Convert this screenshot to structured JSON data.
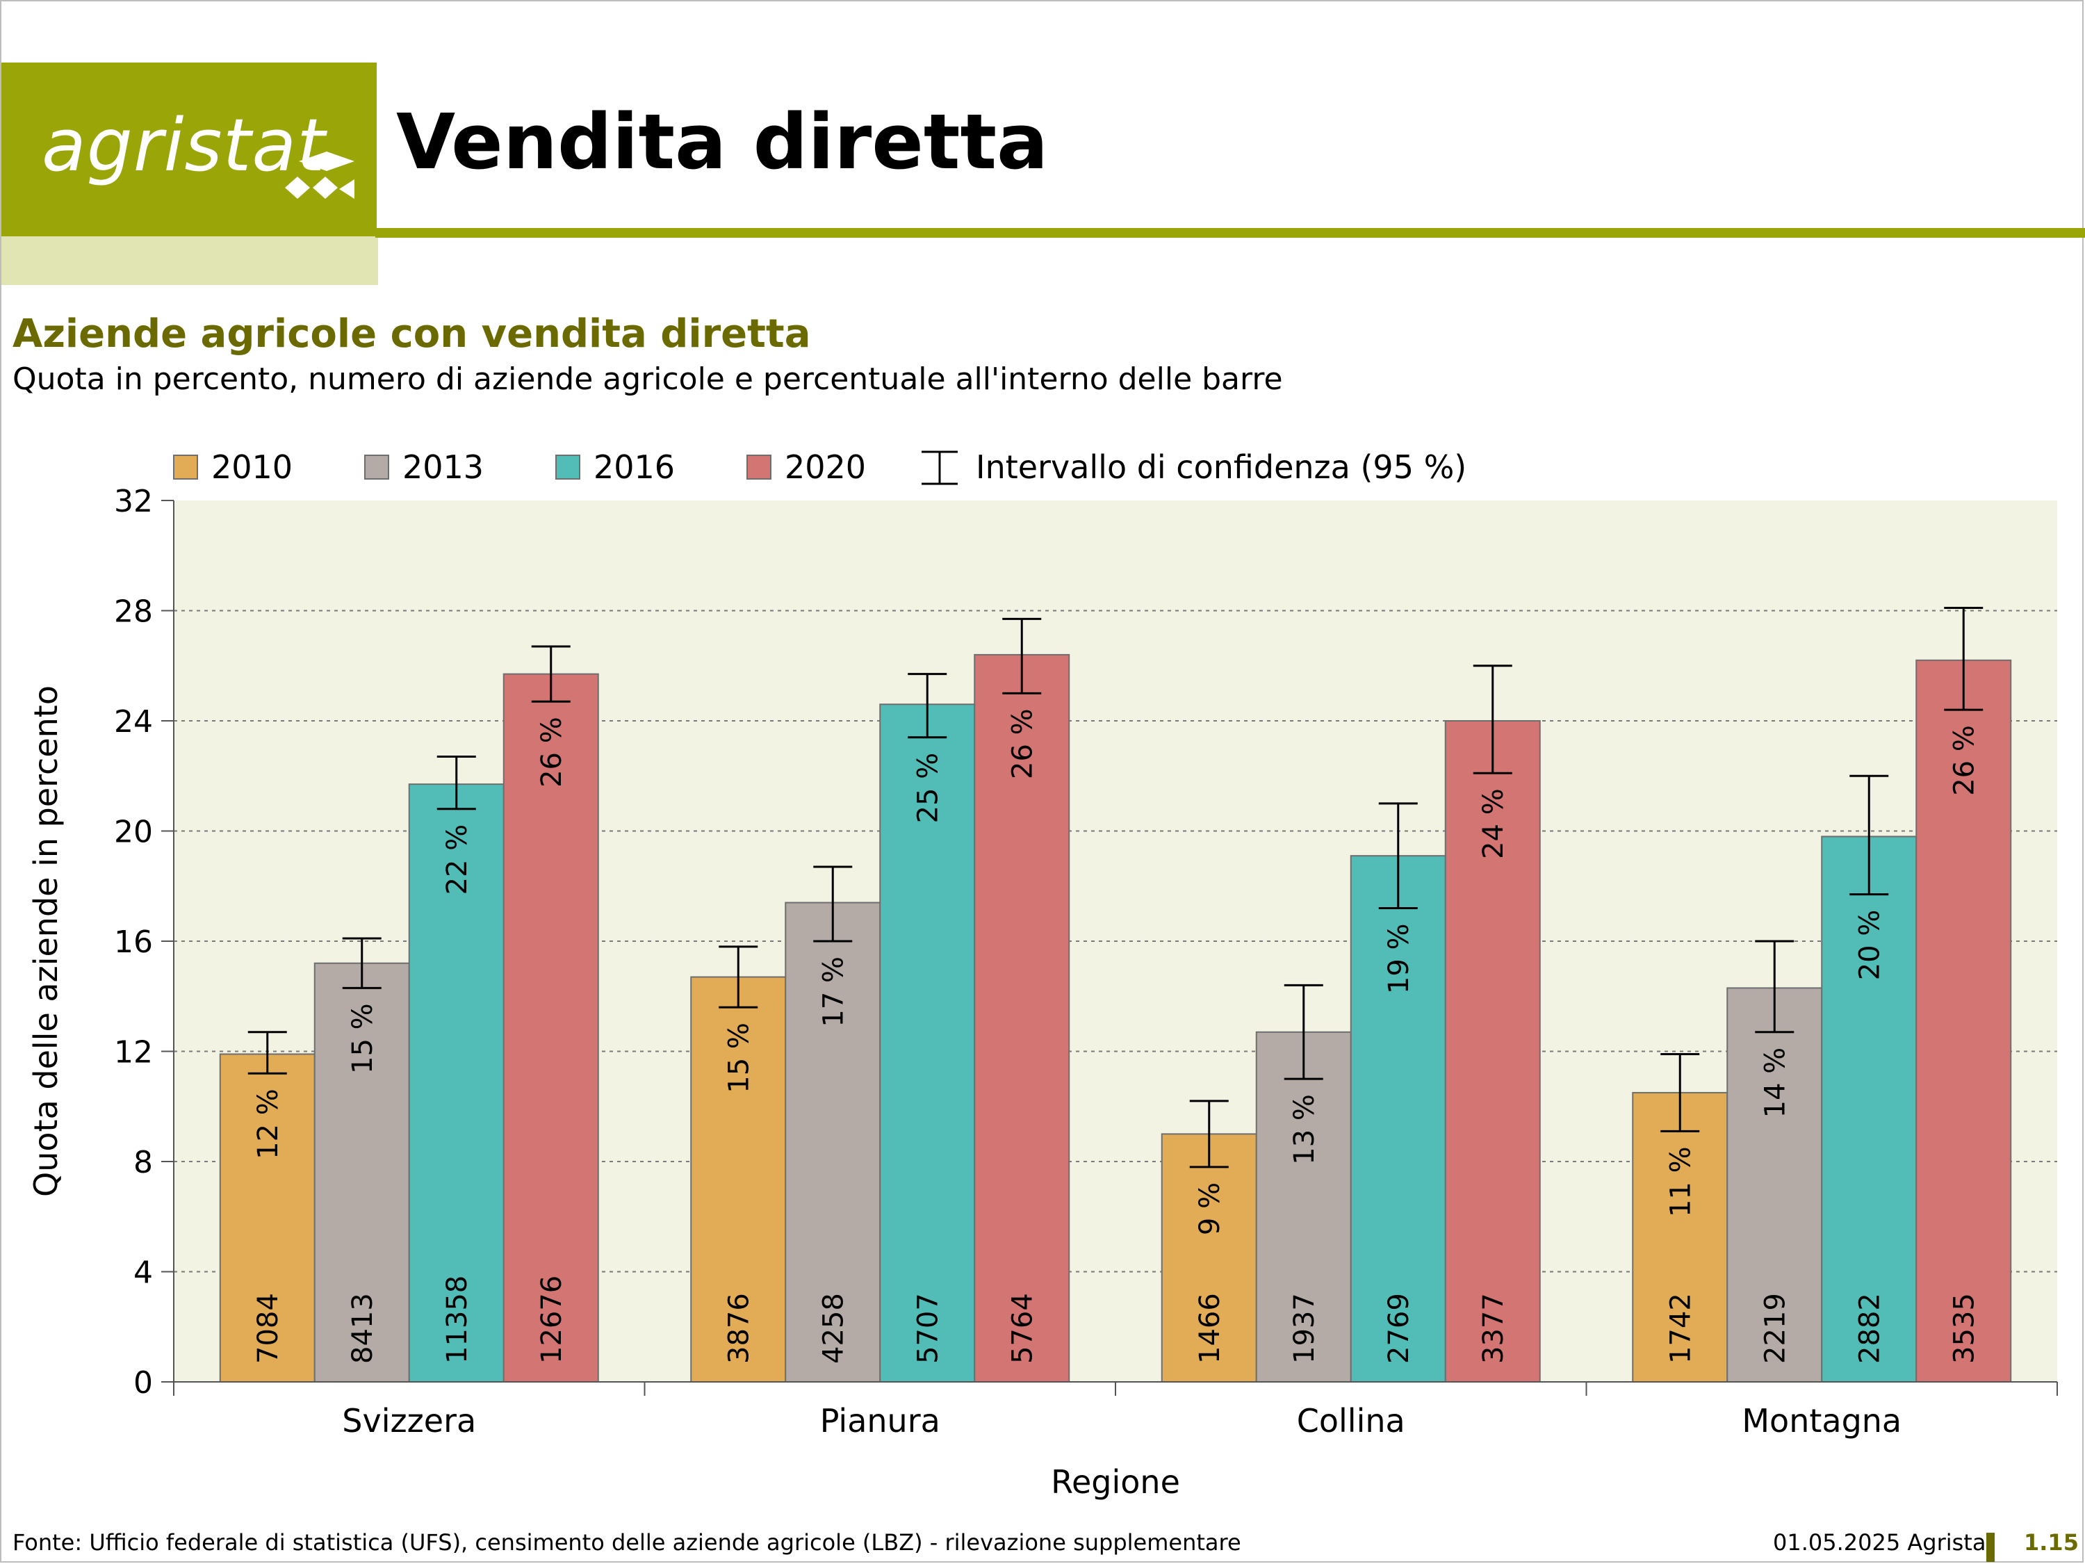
{
  "header": {
    "logo_text": "agristat",
    "title": "Vendita diretta",
    "brand_color": "#9aa507"
  },
  "subtitle": {
    "title": "Aziende agricole con vendita diretta",
    "description": "Quota in percento, numero di aziende agricole e percentuale all'interno delle barre"
  },
  "chart_data": {
    "type": "bar",
    "categories": [
      "Svizzera",
      "Pianura",
      "Collina",
      "Montagna"
    ],
    "series": [
      {
        "name": "2010",
        "color": "#e2ac56",
        "values": [
          11.9,
          14.7,
          9.0,
          10.5
        ],
        "ci_low": [
          11.2,
          13.6,
          7.8,
          9.1
        ],
        "ci_high": [
          12.7,
          15.8,
          10.2,
          11.9
        ],
        "labels": [
          "12 %",
          "15 %",
          "9 %",
          "11 %"
        ],
        "counts": [
          "7084",
          "3876",
          "1466",
          "1742"
        ]
      },
      {
        "name": "2013",
        "color": "#b4aba6",
        "values": [
          15.2,
          17.4,
          12.7,
          14.3
        ],
        "ci_low": [
          14.3,
          16.0,
          11.0,
          12.7
        ],
        "ci_high": [
          16.1,
          18.7,
          14.4,
          16.0
        ],
        "labels": [
          "15 %",
          "17 %",
          "13 %",
          "14 %"
        ],
        "counts": [
          "8413",
          "4258",
          "1937",
          "2219"
        ]
      },
      {
        "name": "2016",
        "color": "#52bdb6",
        "values": [
          21.7,
          24.6,
          19.1,
          19.8
        ],
        "ci_low": [
          20.8,
          23.4,
          17.2,
          17.7
        ],
        "ci_high": [
          22.7,
          25.7,
          21.0,
          22.0
        ],
        "labels": [
          "22 %",
          "25 %",
          "19 %",
          "20 %"
        ],
        "counts": [
          "11358",
          "5707",
          "2769",
          "2882"
        ]
      },
      {
        "name": "2020",
        "color": "#d37572",
        "values": [
          25.7,
          26.4,
          24.0,
          26.2
        ],
        "ci_low": [
          24.7,
          25.0,
          22.1,
          24.4
        ],
        "ci_high": [
          26.7,
          27.7,
          26.0,
          28.1
        ],
        "labels": [
          "26 %",
          "26 %",
          "24 %",
          "26 %"
        ],
        "counts": [
          "12676",
          "5764",
          "3377",
          "3535"
        ]
      }
    ],
    "legend_ci_label": "Intervallo di confidenza (95 %)",
    "legend_position": "top",
    "xlabel": "Regione",
    "ylabel": "Quota delle aziende in percento",
    "ylim": [
      0,
      32
    ],
    "yticks": [
      0,
      4,
      8,
      12,
      16,
      20,
      24,
      28,
      32
    ],
    "grid": "horizontal dotted",
    "plot_background": "#f3f3e4"
  },
  "footer": {
    "source": "Fonte: Ufficio federale di statistica (UFS), censimento delle aziende agricole (LBZ) - rilevazione supplementare",
    "date": "01.05.2025 Agristat",
    "page": "1.15"
  }
}
